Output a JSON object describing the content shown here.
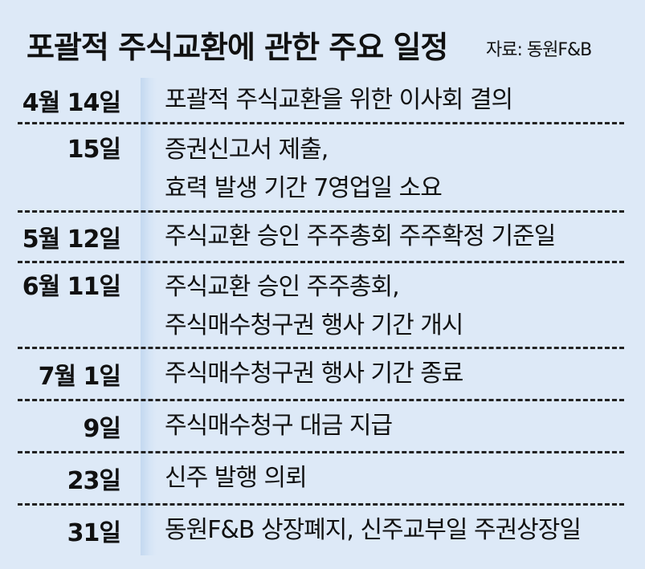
{
  "title": "포괄적 주식교환에 관한 주요 일정",
  "source": "자료: 동원F&B",
  "rows": [
    {
      "date": "4월 14일",
      "lines": [
        "포괄적 주식교환을 위한 이사회 결의"
      ]
    },
    {
      "date": "15일",
      "lines": [
        "증권신고서 제출,",
        "효력 발생 기간 7영업일 소요"
      ]
    },
    {
      "date": "5월 12일",
      "lines": [
        "주식교환 승인 주주총회 주주확정 기준일"
      ]
    },
    {
      "date": "6월 11일",
      "lines": [
        "주식교환 승인 주주총회,",
        "주식매수청구권 행사 기간 개시"
      ]
    },
    {
      "date": "7월 1일",
      "lines": [
        "주식매수청구권 행사 기간 종료"
      ]
    },
    {
      "date": "9일",
      "lines": [
        "주식매수청구 대금 지급"
      ]
    },
    {
      "date": "23일",
      "lines": [
        "신주 발행 의뢰"
      ]
    },
    {
      "date": "31일",
      "lines": [
        "동원F&B 상장폐지, 신주교부일 주권상장일"
      ]
    }
  ],
  "colors": {
    "background": "#dde9f7",
    "divider": "#222222",
    "column_bar": "#c3d8f0"
  }
}
